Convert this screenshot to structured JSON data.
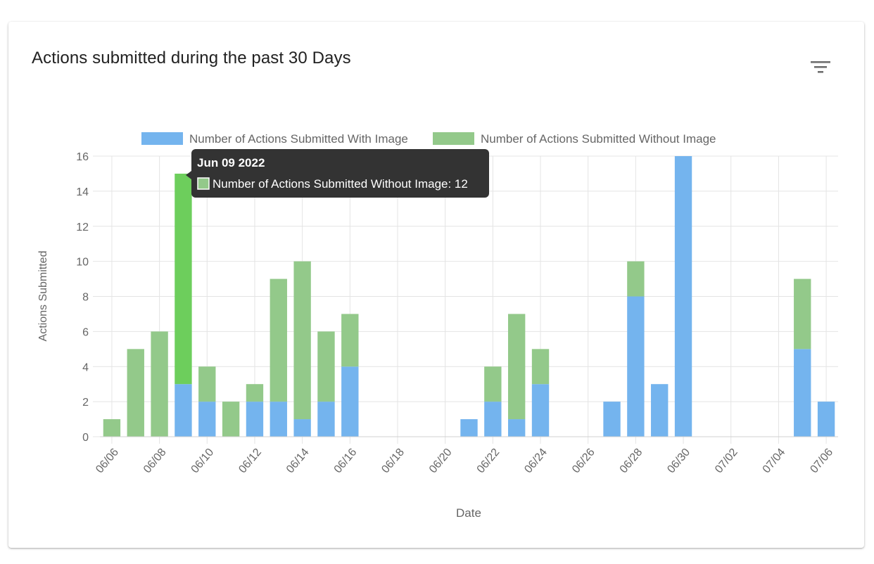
{
  "card": {
    "title": "Actions submitted during the past 30 Days",
    "filter_icon": "filter-list-icon"
  },
  "colors": {
    "with_image": "#74b4ee",
    "without_image": "#93c98a",
    "without_image_hover": "#6dce5c",
    "grid": "#e4e4e4",
    "axis_text": "#666666",
    "tooltip_bg": "#333333"
  },
  "chart_data": {
    "type": "bar",
    "stacked": true,
    "xlabel": "Date",
    "ylabel": "Actions Submitted",
    "ylim": [
      0,
      16
    ],
    "yticks": [
      0,
      2,
      4,
      6,
      8,
      10,
      12,
      14,
      16
    ],
    "grid": true,
    "legend_position": "top",
    "categories": [
      "06/06",
      "06/07",
      "06/08",
      "06/09",
      "06/10",
      "06/11",
      "06/12",
      "06/13",
      "06/14",
      "06/15",
      "06/16",
      "06/17",
      "06/18",
      "06/19",
      "06/20",
      "06/21",
      "06/22",
      "06/23",
      "06/24",
      "06/25",
      "06/26",
      "06/27",
      "06/28",
      "06/29",
      "06/30",
      "07/01",
      "07/02",
      "07/03",
      "07/04",
      "07/05",
      "07/06"
    ],
    "tick_labels": [
      "06/06",
      "06/08",
      "06/10",
      "06/12",
      "06/14",
      "06/16",
      "06/18",
      "06/20",
      "06/22",
      "06/24",
      "06/26",
      "06/28",
      "06/30",
      "07/02",
      "07/04",
      "07/06"
    ],
    "series": [
      {
        "name": "Number of Actions Submitted With Image",
        "values": [
          0,
          0,
          0,
          3,
          2,
          0,
          2,
          2,
          1,
          2,
          4,
          0,
          0,
          0,
          0,
          1,
          2,
          1,
          3,
          0,
          0,
          2,
          8,
          3,
          16,
          0,
          0,
          0,
          0,
          5,
          2
        ]
      },
      {
        "name": "Number of Actions Submitted Without Image",
        "values": [
          1,
          5,
          6,
          12,
          2,
          2,
          1,
          7,
          9,
          4,
          3,
          0,
          0,
          0,
          0,
          0,
          2,
          6,
          2,
          0,
          0,
          0,
          2,
          0,
          0,
          0,
          0,
          0,
          0,
          4,
          0
        ]
      }
    ],
    "tooltip": {
      "title": "Jun 09 2022",
      "label": "Number of Actions Submitted Without Image: 12",
      "category_index": 3,
      "series_index": 1
    }
  }
}
